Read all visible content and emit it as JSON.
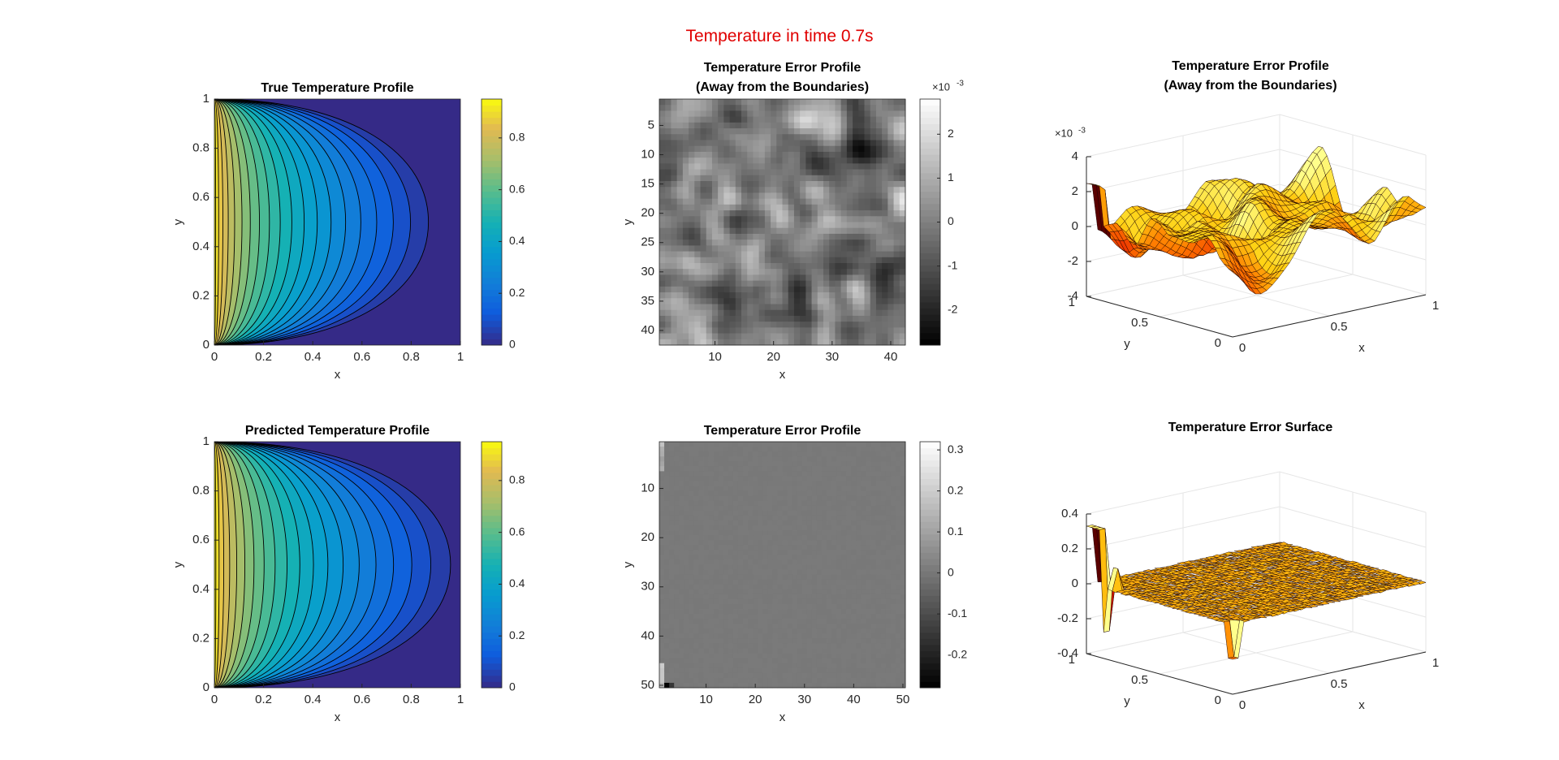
{
  "figure": {
    "suptitle": "Temperature in time 0.7s",
    "suptitle_color": "#e00000",
    "colormap_contour": "parula",
    "colormap_image": "gray",
    "colormap_surface": "hot"
  },
  "chart_data": [
    {
      "id": "true-temperature",
      "type": "heatmap",
      "subtype": "filled-contour",
      "title": "True Temperature Profile",
      "xlabel": "x",
      "ylabel": "y",
      "xlim": [
        0,
        1
      ],
      "ylim": [
        0,
        1
      ],
      "xticks": [
        "0",
        "0.2",
        "0.4",
        "0.6",
        "0.8",
        "1"
      ],
      "yticks": [
        "0",
        "0.2",
        "0.4",
        "0.6",
        "0.8",
        "1"
      ],
      "colorbar": {
        "range": [
          0,
          0.95
        ],
        "ticks": [
          "0",
          "0.2",
          "0.4",
          "0.6",
          "0.8"
        ]
      },
      "contour_levels": 20,
      "boundary_value_left": 1,
      "edge_reach_x": 0.87
    },
    {
      "id": "error-image-interior",
      "type": "heatmap",
      "title": "Temperature Error Profile",
      "subtitle": "(Away from the Boundaries)",
      "xlabel": "x",
      "ylabel": "y",
      "grid_size": 42,
      "xticks": [
        "10",
        "20",
        "30",
        "40"
      ],
      "yticks": [
        "5",
        "10",
        "15",
        "20",
        "25",
        "30",
        "35",
        "40"
      ],
      "colorbar": {
        "range": [
          -2.8,
          2.8
        ],
        "ticks": [
          "-2",
          "-1",
          "0",
          "1",
          "2"
        ],
        "exponent": "×10",
        "exponent_power": "-3"
      }
    },
    {
      "id": "error-surface-interior",
      "type": "surface",
      "title": "Temperature Error Profile",
      "subtitle": "(Away from the Boundaries)",
      "xlabel": "x",
      "ylabel": "y",
      "xlim": [
        0,
        1
      ],
      "ylim": [
        0,
        1
      ],
      "zlim": [
        -4,
        4
      ],
      "xticks": [
        "0",
        "0.5",
        "1"
      ],
      "yticks": [
        "0",
        "0.5",
        "1"
      ],
      "zticks": [
        "-4",
        "-2",
        "0",
        "2",
        "4"
      ],
      "z_exponent": "×10",
      "z_exponent_power": "-3"
    },
    {
      "id": "predicted-temperature",
      "type": "heatmap",
      "subtype": "filled-contour",
      "title": "Predicted Temperature Profile",
      "xlabel": "x",
      "ylabel": "y",
      "xlim": [
        0,
        1
      ],
      "ylim": [
        0,
        1
      ],
      "xticks": [
        "0",
        "0.2",
        "0.4",
        "0.6",
        "0.8",
        "1"
      ],
      "yticks": [
        "0",
        "0.2",
        "0.4",
        "0.6",
        "0.8",
        "1"
      ],
      "colorbar": {
        "range": [
          0,
          0.95
        ],
        "ticks": [
          "0",
          "0.2",
          "0.4",
          "0.6",
          "0.8"
        ]
      },
      "contour_levels": 20,
      "boundary_value_left": 1,
      "edge_reach_x": 0.96
    },
    {
      "id": "error-image-full",
      "type": "heatmap",
      "title": "Temperature Error Profile",
      "xlabel": "x",
      "ylabel": "y",
      "grid_size": 50,
      "xticks": [
        "10",
        "20",
        "30",
        "40",
        "50"
      ],
      "yticks": [
        "10",
        "20",
        "30",
        "40",
        "50"
      ],
      "colorbar": {
        "range": [
          -0.28,
          0.32
        ],
        "ticks": [
          "-0.2",
          "-0.1",
          "0",
          "0.1",
          "0.2",
          "0.3"
        ]
      }
    },
    {
      "id": "error-surface-full",
      "type": "surface",
      "title": "Temperature Error Surface",
      "xlabel": "x",
      "ylabel": "y",
      "xlim": [
        0,
        1
      ],
      "ylim": [
        0,
        1
      ],
      "zlim": [
        -0.4,
        0.4
      ],
      "xticks": [
        "0",
        "0.5",
        "1"
      ],
      "yticks": [
        "0",
        "0.5",
        "1"
      ],
      "zticks": [
        "-0.4",
        "-0.2",
        "0",
        "0.2",
        "0.4"
      ]
    }
  ]
}
